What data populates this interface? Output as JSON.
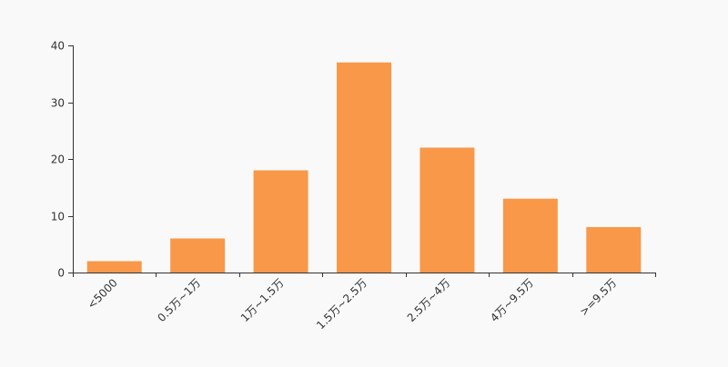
{
  "chart_data": {
    "type": "bar",
    "categories": [
      "<5000",
      "0.5万~1万",
      "1万~1.5万",
      "1.5万~2.5万",
      "2.5万~4万",
      "4万~9.5万",
      ">=9.5万"
    ],
    "values": [
      2,
      6,
      18,
      37,
      22,
      13,
      8
    ],
    "title": "",
    "xlabel": "",
    "ylabel": "",
    "ylim": [
      0,
      40
    ],
    "yticks": [
      0,
      10,
      20,
      30,
      40
    ],
    "grid": false,
    "bar_color": "#f99848",
    "background": "#f9f9f9"
  }
}
